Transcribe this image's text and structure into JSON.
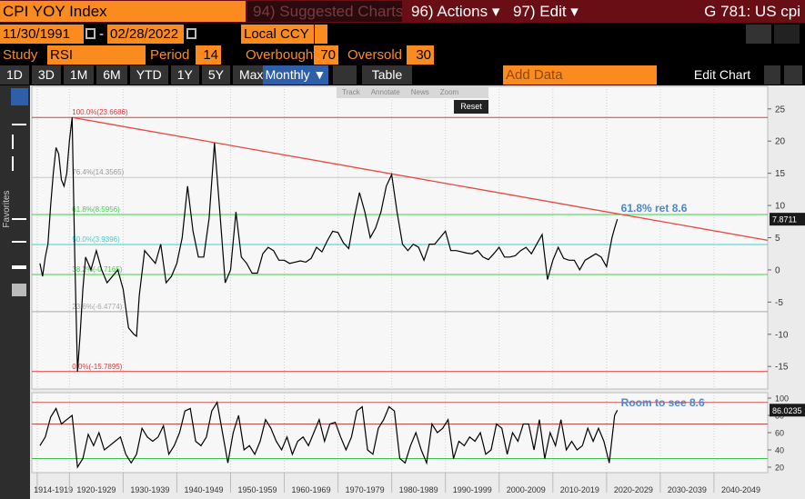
{
  "header": {
    "security": "CPI YOY Index",
    "suggested": "94) Suggested Charts",
    "actions": "96) Actions ▾",
    "edit": "97) Edit ▾",
    "title": "G 781: US cpi"
  },
  "dates": {
    "start": "11/30/1991",
    "separator": "-",
    "end": "02/28/2022",
    "currency": "Local CCY"
  },
  "controls": {
    "study_label": "Study",
    "study": "RSI",
    "period_label": "Period",
    "period": 14,
    "overbought_label": "Overbought",
    "overbought": 70,
    "oversold_label": "Oversold",
    "oversold": 30
  },
  "ranges": [
    "1D",
    "3D",
    "1M",
    "6M",
    "YTD",
    "1Y",
    "5Y",
    "Max"
  ],
  "chart_bar": {
    "frequency": "Monthly ▼",
    "table": "Table",
    "add_data": "Add Data",
    "edit_chart": "Edit Chart"
  },
  "tools": {
    "buttons": [
      "Track",
      "Annotate",
      "News",
      "Zoom"
    ],
    "reset": "Reset",
    "favorites": "Favorites"
  },
  "chart_data": [
    {
      "type": "line",
      "color": "#000000",
      "x": [
        1914.5,
        1915,
        1915.5,
        1916,
        1916.5,
        1917,
        1917.5,
        1918,
        1918.5,
        1919,
        1919.5,
        1920,
        1920.5,
        1921,
        1921.5,
        1922,
        1922.5,
        1923,
        1924,
        1925,
        1926,
        1927,
        1928,
        1929,
        1930,
        1931,
        1932,
        1932.5,
        1933,
        1934,
        1935,
        1936,
        1937,
        1938,
        1939,
        1940,
        1941,
        1942,
        1943,
        1944,
        1945,
        1946,
        1947,
        1948,
        1949,
        1950,
        1951,
        1952,
        1953,
        1954,
        1955,
        1956,
        1957,
        1958,
        1959,
        1960,
        1961,
        1962,
        1963,
        1964,
        1965,
        1966,
        1967,
        1968,
        1969,
        1970,
        1971,
        1972,
        1973,
        1974,
        1975,
        1976,
        1977,
        1978,
        1979,
        1980,
        1981,
        1982,
        1983,
        1984,
        1985,
        1986,
        1987,
        1988,
        1989,
        1990,
        1991,
        1992,
        1993,
        1994,
        1995,
        1996,
        1997,
        1998,
        1999,
        2000,
        2001,
        2002,
        2003,
        2004,
        2005,
        2006,
        2007,
        2008,
        2009,
        2010,
        2011,
        2012,
        2013,
        2014,
        2015,
        2016,
        2017,
        2018,
        2019,
        2020,
        2021,
        2021.5,
        2022
      ],
      "values": [
        1,
        -1,
        2,
        4,
        10,
        15,
        19,
        18,
        14,
        13,
        15,
        20,
        23.6686,
        2,
        -15.7895,
        -10,
        -3,
        2,
        0,
        3,
        0,
        -2,
        -1,
        0,
        -3,
        -9,
        -10,
        -10.3,
        -4,
        3,
        2,
        1,
        4,
        -2,
        -1,
        1,
        5,
        13,
        6,
        2,
        2,
        8,
        19.7,
        9,
        -2,
        0,
        9,
        2,
        1,
        -0.5,
        -0.5,
        2.5,
        3.5,
        3,
        1.5,
        1.5,
        1,
        1.2,
        1.4,
        1.2,
        1.8,
        3.5,
        2.8,
        4.5,
        6,
        5.8,
        4.2,
        3.3,
        8,
        12,
        9,
        5,
        6.5,
        9,
        13,
        14.8,
        9,
        4,
        3,
        4,
        3.5,
        1.5,
        4,
        4,
        5,
        6,
        3,
        3,
        2.8,
        2.6,
        2.5,
        3,
        2,
        1.6,
        2.5,
        3.5,
        2,
        2,
        2.2,
        3,
        3.5,
        2.5,
        4,
        5.5,
        -1.5,
        1.5,
        3.5,
        1.8,
        1.5,
        1.5,
        0,
        1.5,
        2,
        2.5,
        2,
        0.5,
        5,
        6.5,
        7.8711
      ],
      "xlim": [
        1913,
        2050
      ],
      "ylim": [
        -18.5,
        28.5
      ],
      "yticks": [
        25,
        20,
        15,
        10,
        5,
        0,
        -5,
        -10,
        -15
      ],
      "grid": true,
      "fib_levels": [
        {
          "value": 23.6686,
          "label": "100.0%(23.6686)",
          "color": "#e0383e"
        },
        {
          "value": 14.3565,
          "label": "76.4%(14.3565)",
          "color": "#c8c8c8"
        },
        {
          "value": 8.5956,
          "label": "61.8%(8.5956)",
          "color": "#3cd24a"
        },
        {
          "value": 3.9396,
          "label": "50.0%(3.9396)",
          "color": "#3cd2d2"
        },
        {
          "value": -0.7165,
          "label": "38.2%(-0.7165)",
          "color": "#3cd24a"
        },
        {
          "value": -6.4774,
          "label": "23.6%(-6.4774)",
          "color": "#a8a8a8"
        },
        {
          "value": -15.7895,
          "label": "0.0%(-15.7895)",
          "color": "#e0383e"
        }
      ],
      "trendline": {
        "x": [
          1920.5,
          2050
        ],
        "y": [
          23.6686,
          4.6
        ],
        "color": "#e8473f"
      },
      "annotation": "61.8% ret 8.6",
      "annotation_color": "#4a86d8"
    },
    {
      "type": "line",
      "color": "#000000",
      "x": [
        1914.5,
        1915.5,
        1916.5,
        1917.5,
        1918.5,
        1919.5,
        1920.5,
        1921.5,
        1922.5,
        1923.5,
        1924.5,
        1925.5,
        1926.5,
        1927.5,
        1928.5,
        1929.5,
        1930.5,
        1931.5,
        1932.5,
        1933.5,
        1934.5,
        1935.5,
        1936.5,
        1937.5,
        1938.5,
        1939.5,
        1940.5,
        1941.5,
        1942.5,
        1943.5,
        1944.5,
        1945.5,
        1946.5,
        1947.5,
        1948.5,
        1949.5,
        1950.5,
        1951.5,
        1952.5,
        1953.5,
        1954.5,
        1955.5,
        1956.5,
        1957.5,
        1958.5,
        1959.5,
        1960.5,
        1961.5,
        1962.5,
        1963.5,
        1964.5,
        1965.5,
        1966.5,
        1967.5,
        1968.5,
        1969.5,
        1970.5,
        1971.5,
        1972.5,
        1973.5,
        1974.5,
        1975.5,
        1976.5,
        1977.5,
        1978.5,
        1979.5,
        1980.5,
        1981.5,
        1982.5,
        1983.5,
        1984.5,
        1985.5,
        1986.5,
        1987.5,
        1988.5,
        1989.5,
        1990.5,
        1991.5,
        1992.5,
        1993.5,
        1994.5,
        1995.5,
        1996.5,
        1997.5,
        1998.5,
        1999.5,
        2000.5,
        2001.5,
        2002.5,
        2003.5,
        2004.5,
        2005.5,
        2006.5,
        2007.5,
        2008.5,
        2009.5,
        2010.5,
        2011.5,
        2012.5,
        2013.5,
        2014.5,
        2015.5,
        2016.5,
        2017.5,
        2018.5,
        2019.5,
        2020.5,
        2021.5,
        2022
      ],
      "values": [
        45,
        55,
        78,
        88,
        70,
        75,
        80,
        20,
        30,
        58,
        45,
        60,
        40,
        45,
        50,
        55,
        35,
        25,
        35,
        65,
        55,
        50,
        55,
        68,
        35,
        45,
        60,
        85,
        88,
        50,
        45,
        55,
        85,
        95,
        60,
        25,
        60,
        80,
        40,
        45,
        35,
        50,
        75,
        65,
        50,
        40,
        55,
        35,
        50,
        55,
        45,
        60,
        75,
        50,
        70,
        72,
        55,
        40,
        55,
        85,
        90,
        40,
        35,
        65,
        75,
        90,
        85,
        30,
        25,
        45,
        60,
        40,
        25,
        70,
        60,
        65,
        75,
        30,
        50,
        45,
        55,
        50,
        60,
        35,
        40,
        70,
        65,
        35,
        60,
        50,
        70,
        70,
        40,
        75,
        30,
        60,
        45,
        75,
        40,
        50,
        40,
        45,
        65,
        50,
        65,
        50,
        25,
        80,
        86.0235
      ],
      "xlim": [
        1913,
        2050
      ],
      "ylim": [
        13.7,
        106.3
      ],
      "yticks": [
        100,
        80,
        60,
        40,
        20
      ],
      "grid": true,
      "xticks": [
        {
          "value": 1914,
          "label": "1914-1919"
        },
        {
          "value": 1920,
          "label": "1920-1929"
        },
        {
          "value": 1930,
          "label": "1930-1939"
        },
        {
          "value": 1940,
          "label": "1940-1949"
        },
        {
          "value": 1950,
          "label": "1950-1959"
        },
        {
          "value": 1960,
          "label": "1960-1969"
        },
        {
          "value": 1970,
          "label": "1970-1979"
        },
        {
          "value": 1980,
          "label": "1980-1989"
        },
        {
          "value": 1990,
          "label": "1990-1999"
        },
        {
          "value": 2000,
          "label": "2000-2009"
        },
        {
          "value": 2010,
          "label": "2010-2019"
        },
        {
          "value": 2020,
          "label": "2020-2029"
        },
        {
          "value": 2030,
          "label": "2030-2039"
        },
        {
          "value": 2040,
          "label": "2040-2049"
        }
      ],
      "levels": [
        {
          "value": 95,
          "color": "#d0524a"
        }
      ],
      "overbought_color": "#c0504d",
      "oversold_color": "#3cc24a",
      "annotation": "Room to see 8.6",
      "annotation_color": "#4a86d8"
    }
  ]
}
